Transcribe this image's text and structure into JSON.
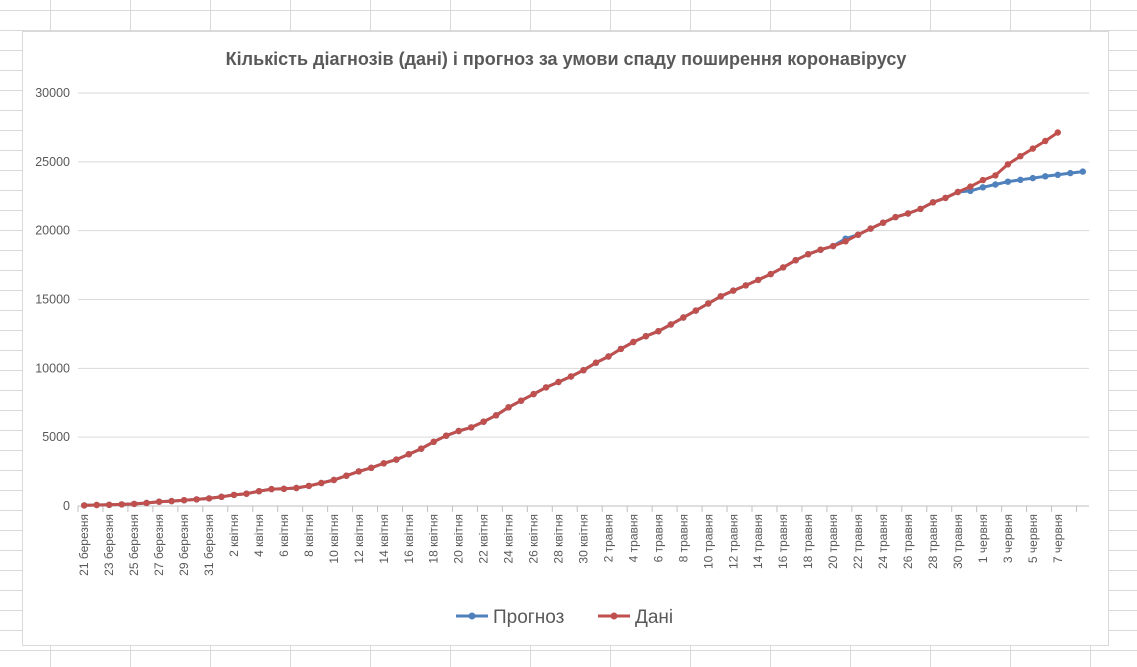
{
  "chart_data": {
    "type": "line",
    "title": "Кількість діагнозів (дані) і прогноз за умови спаду поширення коронавірусу",
    "xlabel": "",
    "ylabel": "",
    "ylim": [
      0,
      30000
    ],
    "yticks": [
      0,
      5000,
      10000,
      15000,
      20000,
      25000,
      30000
    ],
    "grid": true,
    "legend_position": "bottom",
    "x_tick_labels": [
      "21 березня",
      "23 березня",
      "25 березня",
      "27 березня",
      "29 березня",
      "31 березня",
      "2 квітня",
      "4 квітня",
      "6 квітня",
      "8 квітня",
      "10 квітня",
      "12 квітня",
      "14 квітня",
      "16 квітня",
      "18 квітня",
      "20 квітня",
      "22 квітня",
      "24 квітня",
      "26 квітня",
      "28 квітня",
      "30 квітня",
      "2 травня",
      "4 травня",
      "6 травня",
      "8 травня",
      "10 травня",
      "12 травня",
      "14 травня",
      "16 травня",
      "18 травня",
      "20 травня",
      "22 травня",
      "24 травня",
      "26 травня",
      "28 травня",
      "30 травня",
      "1 червня",
      "3 червня",
      "5 червня",
      "7 червня"
    ],
    "series": [
      {
        "name": "Прогноз",
        "color": "#4f81bd",
        "values": [
          47,
          73,
          84,
          113,
          156,
          218,
          310,
          356,
          418,
          480,
          549,
          669,
          804,
          897,
          1072,
          1225,
          1251,
          1308,
          1462,
          1668,
          1892,
          2203,
          2511,
          2777,
          3102,
          3372,
          3764,
          4161,
          4662,
          5106,
          5449,
          5710,
          6125,
          6592,
          7170,
          7647,
          8125,
          8617,
          9009,
          9410,
          9866,
          10406,
          10861,
          11411,
          11913,
          12331,
          12697,
          13184,
          13691,
          14195,
          14710,
          15232,
          15648,
          16023,
          16425,
          16847,
          17330,
          17858,
          18291,
          18616,
          18876,
          19419,
          19706,
          20148,
          20580,
          20986,
          21245,
          21584,
          22061,
          22382,
          22811,
          22887,
          23153,
          23353,
          23558,
          23692,
          23816,
          23950,
          24061,
          24179,
          24288
        ]
      },
      {
        "name": "Дані",
        "color": "#c0504d",
        "values": [
          47,
          73,
          84,
          113,
          156,
          218,
          310,
          356,
          418,
          480,
          549,
          669,
          804,
          897,
          1072,
          1225,
          1251,
          1308,
          1462,
          1668,
          1892,
          2203,
          2511,
          2777,
          3102,
          3372,
          3764,
          4161,
          4662,
          5106,
          5449,
          5710,
          6125,
          6592,
          7170,
          7647,
          8125,
          8617,
          9009,
          9410,
          9866,
          10406,
          10861,
          11411,
          11913,
          12331,
          12697,
          13184,
          13691,
          14195,
          14710,
          15232,
          15648,
          16023,
          16425,
          16847,
          17330,
          17858,
          18291,
          18616,
          18876,
          19230,
          19706,
          20148,
          20580,
          20986,
          21245,
          21584,
          22061,
          22382,
          22811,
          23204,
          23672,
          24012,
          24823,
          25411,
          25964,
          26514,
          27134
        ]
      }
    ]
  }
}
